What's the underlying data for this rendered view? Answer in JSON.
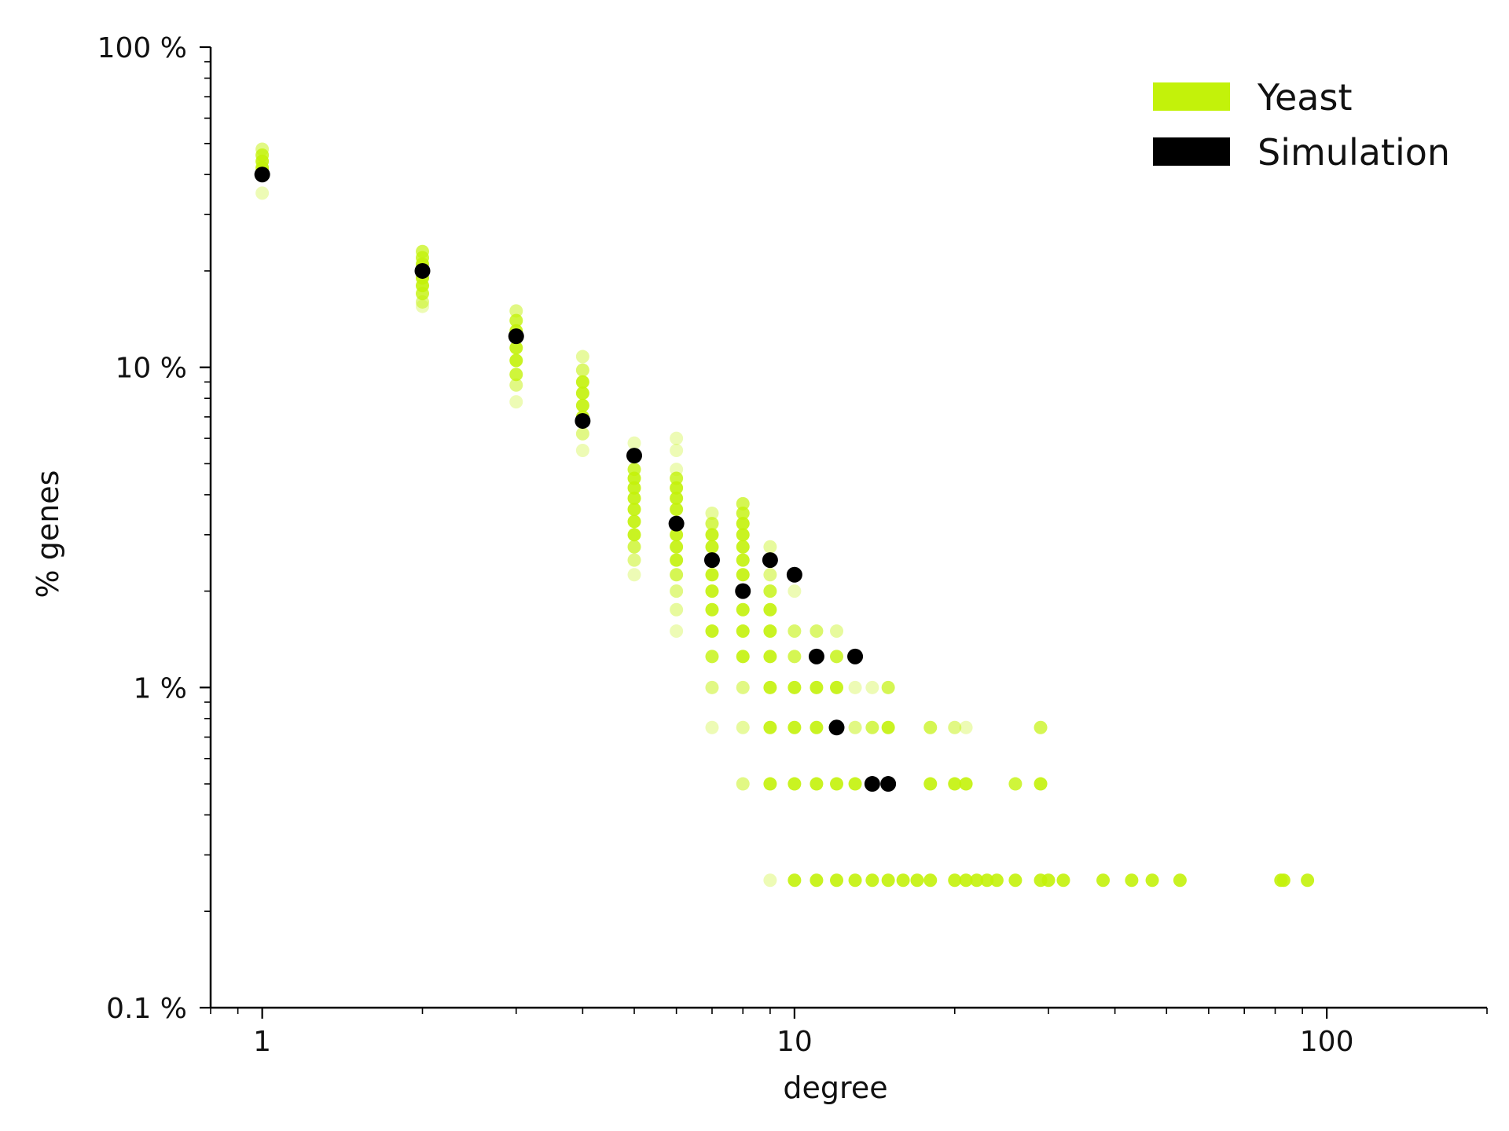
{
  "chart_data": {
    "type": "scatter",
    "xlabel": "degree",
    "ylabel": "% genes",
    "x_scale": "log",
    "y_scale": "log",
    "xlim": [
      0.8,
      200
    ],
    "ylim": [
      0.1,
      100
    ],
    "x_ticks": [
      {
        "value": 1,
        "label": "1"
      },
      {
        "value": 10,
        "label": "10"
      },
      {
        "value": 100,
        "label": "100"
      }
    ],
    "y_ticks": [
      {
        "value": 0.1,
        "label": "0.1 %"
      },
      {
        "value": 1,
        "label": "1 %"
      },
      {
        "value": 10,
        "label": "10 %"
      },
      {
        "value": 100,
        "label": "100 %"
      }
    ],
    "grid": false,
    "legend_position": "top-right",
    "colors": {
      "yeast": "#c3f20a",
      "simulation": "#000000"
    },
    "series": [
      {
        "name": "Yeast",
        "points": [
          {
            "x": 1,
            "y": 48,
            "alpha": 0.5
          },
          {
            "x": 1,
            "y": 46,
            "alpha": 0.8
          },
          {
            "x": 1,
            "y": 44,
            "alpha": 0.9
          },
          {
            "x": 1,
            "y": 42,
            "alpha": 0.9
          },
          {
            "x": 1,
            "y": 41,
            "alpha": 0.8
          },
          {
            "x": 1,
            "y": 35,
            "alpha": 0.3
          },
          {
            "x": 2,
            "y": 23,
            "alpha": 0.7
          },
          {
            "x": 2,
            "y": 22,
            "alpha": 0.8
          },
          {
            "x": 2,
            "y": 21,
            "alpha": 0.9
          },
          {
            "x": 2,
            "y": 19,
            "alpha": 0.9
          },
          {
            "x": 2,
            "y": 18,
            "alpha": 0.9
          },
          {
            "x": 2,
            "y": 17,
            "alpha": 0.8
          },
          {
            "x": 2,
            "y": 16,
            "alpha": 0.5
          },
          {
            "x": 2,
            "y": 15.5,
            "alpha": 0.3
          },
          {
            "x": 3,
            "y": 15,
            "alpha": 0.5
          },
          {
            "x": 3,
            "y": 14,
            "alpha": 0.8
          },
          {
            "x": 3,
            "y": 13,
            "alpha": 0.9
          },
          {
            "x": 3,
            "y": 11.5,
            "alpha": 0.9
          },
          {
            "x": 3,
            "y": 10.5,
            "alpha": 0.9
          },
          {
            "x": 3,
            "y": 9.5,
            "alpha": 0.8
          },
          {
            "x": 3,
            "y": 8.8,
            "alpha": 0.5
          },
          {
            "x": 3,
            "y": 7.8,
            "alpha": 0.3
          },
          {
            "x": 4,
            "y": 10.8,
            "alpha": 0.4
          },
          {
            "x": 4,
            "y": 9.8,
            "alpha": 0.6
          },
          {
            "x": 4,
            "y": 9.0,
            "alpha": 0.9
          },
          {
            "x": 4,
            "y": 8.3,
            "alpha": 0.9
          },
          {
            "x": 4,
            "y": 7.6,
            "alpha": 0.9
          },
          {
            "x": 4,
            "y": 7.0,
            "alpha": 0.9
          },
          {
            "x": 4,
            "y": 6.2,
            "alpha": 0.5
          },
          {
            "x": 4,
            "y": 5.5,
            "alpha": 0.3
          },
          {
            "x": 5,
            "y": 5.8,
            "alpha": 0.3
          },
          {
            "x": 5,
            "y": 4.8,
            "alpha": 0.8
          },
          {
            "x": 5,
            "y": 4.5,
            "alpha": 0.9
          },
          {
            "x": 5,
            "y": 4.2,
            "alpha": 0.9
          },
          {
            "x": 5,
            "y": 3.9,
            "alpha": 0.9
          },
          {
            "x": 5,
            "y": 3.6,
            "alpha": 0.9
          },
          {
            "x": 5,
            "y": 3.3,
            "alpha": 0.9
          },
          {
            "x": 5,
            "y": 3.0,
            "alpha": 0.9
          },
          {
            "x": 5,
            "y": 2.75,
            "alpha": 0.7
          },
          {
            "x": 5,
            "y": 2.5,
            "alpha": 0.5
          },
          {
            "x": 5,
            "y": 2.25,
            "alpha": 0.3
          },
          {
            "x": 6,
            "y": 6.0,
            "alpha": 0.3
          },
          {
            "x": 6,
            "y": 5.5,
            "alpha": 0.3
          },
          {
            "x": 6,
            "y": 4.8,
            "alpha": 0.3
          },
          {
            "x": 6,
            "y": 4.5,
            "alpha": 0.8
          },
          {
            "x": 6,
            "y": 4.2,
            "alpha": 0.9
          },
          {
            "x": 6,
            "y": 3.9,
            "alpha": 0.9
          },
          {
            "x": 6,
            "y": 3.6,
            "alpha": 0.9
          },
          {
            "x": 6,
            "y": 3.0,
            "alpha": 0.9
          },
          {
            "x": 6,
            "y": 2.75,
            "alpha": 0.9
          },
          {
            "x": 6,
            "y": 2.5,
            "alpha": 0.9
          },
          {
            "x": 6,
            "y": 2.25,
            "alpha": 0.7
          },
          {
            "x": 6,
            "y": 2.0,
            "alpha": 0.5
          },
          {
            "x": 6,
            "y": 1.75,
            "alpha": 0.4
          },
          {
            "x": 6,
            "y": 1.5,
            "alpha": 0.3
          },
          {
            "x": 7,
            "y": 3.5,
            "alpha": 0.4
          },
          {
            "x": 7,
            "y": 3.25,
            "alpha": 0.7
          },
          {
            "x": 7,
            "y": 3.0,
            "alpha": 0.9
          },
          {
            "x": 7,
            "y": 2.75,
            "alpha": 0.9
          },
          {
            "x": 7,
            "y": 2.25,
            "alpha": 0.9
          },
          {
            "x": 7,
            "y": 2.0,
            "alpha": 0.9
          },
          {
            "x": 7,
            "y": 1.75,
            "alpha": 0.9
          },
          {
            "x": 7,
            "y": 1.5,
            "alpha": 0.9
          },
          {
            "x": 7,
            "y": 1.25,
            "alpha": 0.8
          },
          {
            "x": 7,
            "y": 1.0,
            "alpha": 0.5
          },
          {
            "x": 7,
            "y": 0.75,
            "alpha": 0.3
          },
          {
            "x": 8,
            "y": 3.75,
            "alpha": 0.7
          },
          {
            "x": 8,
            "y": 3.5,
            "alpha": 0.8
          },
          {
            "x": 8,
            "y": 3.25,
            "alpha": 0.9
          },
          {
            "x": 8,
            "y": 3.0,
            "alpha": 0.9
          },
          {
            "x": 8,
            "y": 2.75,
            "alpha": 0.9
          },
          {
            "x": 8,
            "y": 2.5,
            "alpha": 0.9
          },
          {
            "x": 8,
            "y": 2.25,
            "alpha": 0.9
          },
          {
            "x": 8,
            "y": 1.75,
            "alpha": 0.9
          },
          {
            "x": 8,
            "y": 1.5,
            "alpha": 0.9
          },
          {
            "x": 8,
            "y": 1.25,
            "alpha": 0.9
          },
          {
            "x": 8,
            "y": 1.0,
            "alpha": 0.5
          },
          {
            "x": 8,
            "y": 0.75,
            "alpha": 0.4
          },
          {
            "x": 8,
            "y": 0.5,
            "alpha": 0.5
          },
          {
            "x": 9,
            "y": 2.75,
            "alpha": 0.4
          },
          {
            "x": 9,
            "y": 2.25,
            "alpha": 0.5
          },
          {
            "x": 9,
            "y": 2.0,
            "alpha": 0.8
          },
          {
            "x": 9,
            "y": 1.75,
            "alpha": 0.9
          },
          {
            "x": 9,
            "y": 1.5,
            "alpha": 0.9
          },
          {
            "x": 9,
            "y": 1.25,
            "alpha": 0.9
          },
          {
            "x": 9,
            "y": 1.0,
            "alpha": 0.9
          },
          {
            "x": 9,
            "y": 0.75,
            "alpha": 0.9
          },
          {
            "x": 9,
            "y": 0.5,
            "alpha": 0.9
          },
          {
            "x": 9,
            "y": 0.25,
            "alpha": 0.3
          },
          {
            "x": 10,
            "y": 2.0,
            "alpha": 0.3
          },
          {
            "x": 10,
            "y": 1.5,
            "alpha": 0.6
          },
          {
            "x": 10,
            "y": 1.25,
            "alpha": 0.7
          },
          {
            "x": 10,
            "y": 1.0,
            "alpha": 0.9
          },
          {
            "x": 10,
            "y": 0.75,
            "alpha": 0.9
          },
          {
            "x": 10,
            "y": 0.5,
            "alpha": 0.9
          },
          {
            "x": 10,
            "y": 0.25,
            "alpha": 0.9
          },
          {
            "x": 11,
            "y": 1.5,
            "alpha": 0.6
          },
          {
            "x": 11,
            "y": 1.25,
            "alpha": 0.7
          },
          {
            "x": 11,
            "y": 1.0,
            "alpha": 0.9
          },
          {
            "x": 11,
            "y": 0.75,
            "alpha": 0.9
          },
          {
            "x": 11,
            "y": 0.5,
            "alpha": 0.9
          },
          {
            "x": 11,
            "y": 0.25,
            "alpha": 0.9
          },
          {
            "x": 12,
            "y": 1.5,
            "alpha": 0.4
          },
          {
            "x": 12,
            "y": 1.25,
            "alpha": 0.8
          },
          {
            "x": 12,
            "y": 1.0,
            "alpha": 0.9
          },
          {
            "x": 12,
            "y": 0.75,
            "alpha": 0.9
          },
          {
            "x": 12,
            "y": 0.5,
            "alpha": 0.9
          },
          {
            "x": 12,
            "y": 0.25,
            "alpha": 0.9
          },
          {
            "x": 13,
            "y": 1.0,
            "alpha": 0.3
          },
          {
            "x": 13,
            "y": 0.75,
            "alpha": 0.5
          },
          {
            "x": 13,
            "y": 0.5,
            "alpha": 0.9
          },
          {
            "x": 13,
            "y": 0.25,
            "alpha": 0.9
          },
          {
            "x": 14,
            "y": 1.0,
            "alpha": 0.3
          },
          {
            "x": 14,
            "y": 0.75,
            "alpha": 0.7
          },
          {
            "x": 14,
            "y": 0.25,
            "alpha": 0.9
          },
          {
            "x": 15,
            "y": 1.0,
            "alpha": 0.7
          },
          {
            "x": 15,
            "y": 0.75,
            "alpha": 0.9
          },
          {
            "x": 15,
            "y": 0.25,
            "alpha": 0.9
          },
          {
            "x": 16,
            "y": 0.25,
            "alpha": 0.9
          },
          {
            "x": 17,
            "y": 0.25,
            "alpha": 0.9
          },
          {
            "x": 18,
            "y": 0.75,
            "alpha": 0.7
          },
          {
            "x": 18,
            "y": 0.5,
            "alpha": 0.9
          },
          {
            "x": 18,
            "y": 0.25,
            "alpha": 0.9
          },
          {
            "x": 20,
            "y": 0.75,
            "alpha": 0.5
          },
          {
            "x": 20,
            "y": 0.5,
            "alpha": 0.9
          },
          {
            "x": 20,
            "y": 0.25,
            "alpha": 0.9
          },
          {
            "x": 21,
            "y": 0.75,
            "alpha": 0.3
          },
          {
            "x": 21,
            "y": 0.5,
            "alpha": 0.9
          },
          {
            "x": 21,
            "y": 0.25,
            "alpha": 0.9
          },
          {
            "x": 22,
            "y": 0.25,
            "alpha": 0.9
          },
          {
            "x": 23,
            "y": 0.25,
            "alpha": 0.9
          },
          {
            "x": 24,
            "y": 0.25,
            "alpha": 0.9
          },
          {
            "x": 26,
            "y": 0.5,
            "alpha": 0.8
          },
          {
            "x": 26,
            "y": 0.25,
            "alpha": 0.9
          },
          {
            "x": 29,
            "y": 0.75,
            "alpha": 0.7
          },
          {
            "x": 29,
            "y": 0.5,
            "alpha": 0.9
          },
          {
            "x": 29,
            "y": 0.25,
            "alpha": 0.9
          },
          {
            "x": 30,
            "y": 0.25,
            "alpha": 0.9
          },
          {
            "x": 32,
            "y": 0.25,
            "alpha": 0.9
          },
          {
            "x": 38,
            "y": 0.25,
            "alpha": 0.9
          },
          {
            "x": 43,
            "y": 0.25,
            "alpha": 0.9
          },
          {
            "x": 47,
            "y": 0.25,
            "alpha": 0.9
          },
          {
            "x": 53,
            "y": 0.25,
            "alpha": 0.9
          },
          {
            "x": 82,
            "y": 0.25,
            "alpha": 0.9
          },
          {
            "x": 83,
            "y": 0.25,
            "alpha": 0.9
          },
          {
            "x": 92,
            "y": 0.25,
            "alpha": 0.9
          }
        ]
      },
      {
        "name": "Simulation",
        "points": [
          {
            "x": 1,
            "y": 40
          },
          {
            "x": 2,
            "y": 20
          },
          {
            "x": 3,
            "y": 12.5
          },
          {
            "x": 4,
            "y": 6.8
          },
          {
            "x": 5,
            "y": 5.3
          },
          {
            "x": 6,
            "y": 3.25
          },
          {
            "x": 7,
            "y": 2.5
          },
          {
            "x": 8,
            "y": 2.0
          },
          {
            "x": 9,
            "y": 2.5
          },
          {
            "x": 10,
            "y": 2.25
          },
          {
            "x": 11,
            "y": 1.25
          },
          {
            "x": 12,
            "y": 0.75
          },
          {
            "x": 13,
            "y": 1.25
          },
          {
            "x": 14,
            "y": 0.5
          },
          {
            "x": 15,
            "y": 0.5
          }
        ]
      }
    ]
  }
}
